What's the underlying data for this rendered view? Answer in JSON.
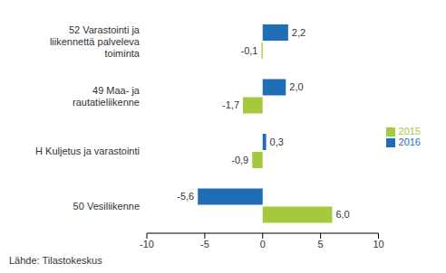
{
  "chart_data": {
    "type": "bar",
    "orientation": "horizontal",
    "categories": [
      "52 Varastointi ja liikennettä palveleva toiminta",
      "49 Maa- ja rautatieliikenne",
      "H Kuljetus ja varastointi",
      "50 Vesiliikenne"
    ],
    "series": [
      {
        "name": "2016",
        "color": "#1f6db5",
        "values": [
          2.2,
          2.0,
          0.3,
          -5.6
        ],
        "value_labels": [
          "2,2",
          "2,0",
          "0,3",
          "-5,6"
        ]
      },
      {
        "name": "2015",
        "color": "#a5c93d",
        "values": [
          -0.1,
          -1.7,
          -0.9,
          6.0
        ],
        "value_labels": [
          "-0,1",
          "-1,7",
          "-0,9",
          "6,0"
        ]
      }
    ],
    "xlim": [
      -10,
      10
    ],
    "xticks": [
      -10,
      -5,
      0,
      5,
      10
    ],
    "grid": false,
    "legend": "right",
    "data_labels": true,
    "annotations": [
      "Lähde: Tilastokeskus"
    ]
  }
}
